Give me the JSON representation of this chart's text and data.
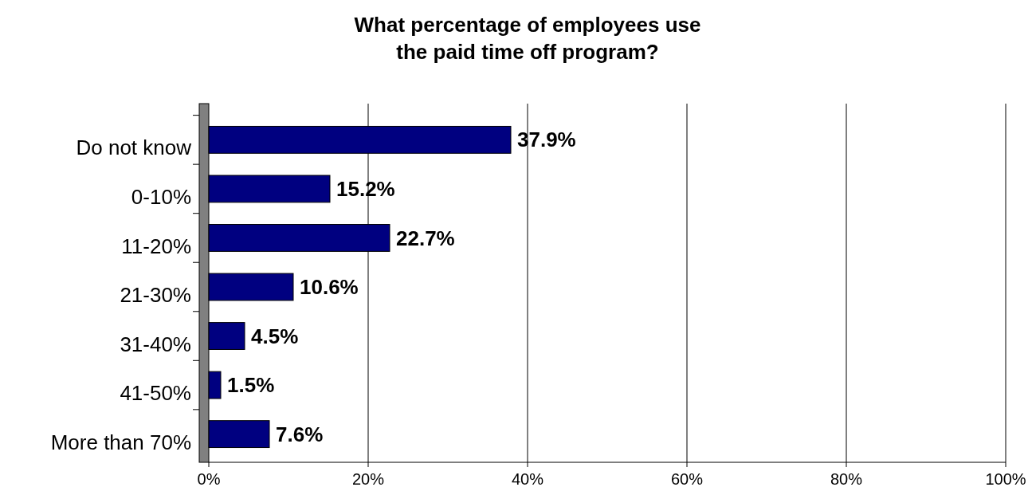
{
  "chart_data": {
    "type": "bar",
    "orientation": "horizontal",
    "title": "What percentage of employees use the paid time off program?",
    "categories": [
      "Do not know",
      "0-10%",
      "11-20%",
      "21-30%",
      "31-40%",
      "41-50%",
      "More than 70%"
    ],
    "values": [
      37.9,
      15.2,
      22.7,
      10.6,
      4.5,
      1.5,
      7.6
    ],
    "value_labels": [
      "37.9%",
      "15.2%",
      "22.7%",
      "10.6%",
      "4.5%",
      "1.5%",
      "7.6%"
    ],
    "color": "#000080",
    "xlim": [
      0,
      100
    ],
    "xticks": [
      {
        "value": 0,
        "label": "0%"
      },
      {
        "value": 20,
        "label": "20%"
      },
      {
        "value": 40,
        "label": "40%"
      },
      {
        "value": 60,
        "label": "60%"
      },
      {
        "value": 80,
        "label": "80%"
      },
      {
        "value": 100,
        "label": "100%"
      }
    ],
    "grid": "x"
  }
}
